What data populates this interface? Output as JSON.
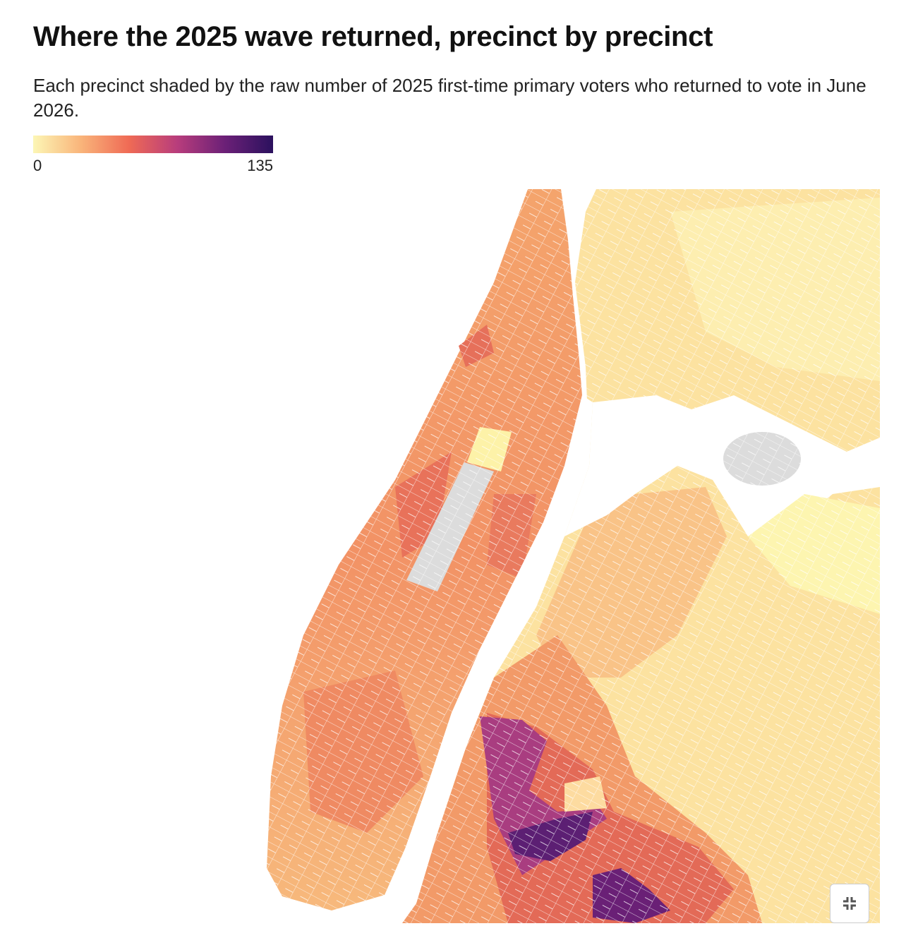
{
  "title": "Where the 2025 wave returned, precinct by precinct",
  "subtitle": "Each precinct shaded by the raw number of 2025 first-time primary voters who returned to vote in June 2026.",
  "legend": {
    "min": 0,
    "max": 135,
    "colors": [
      "#fcf6b5",
      "#f9b47a",
      "#ef6a55",
      "#b83d7c",
      "#6b2077",
      "#2b115e"
    ]
  }
}
